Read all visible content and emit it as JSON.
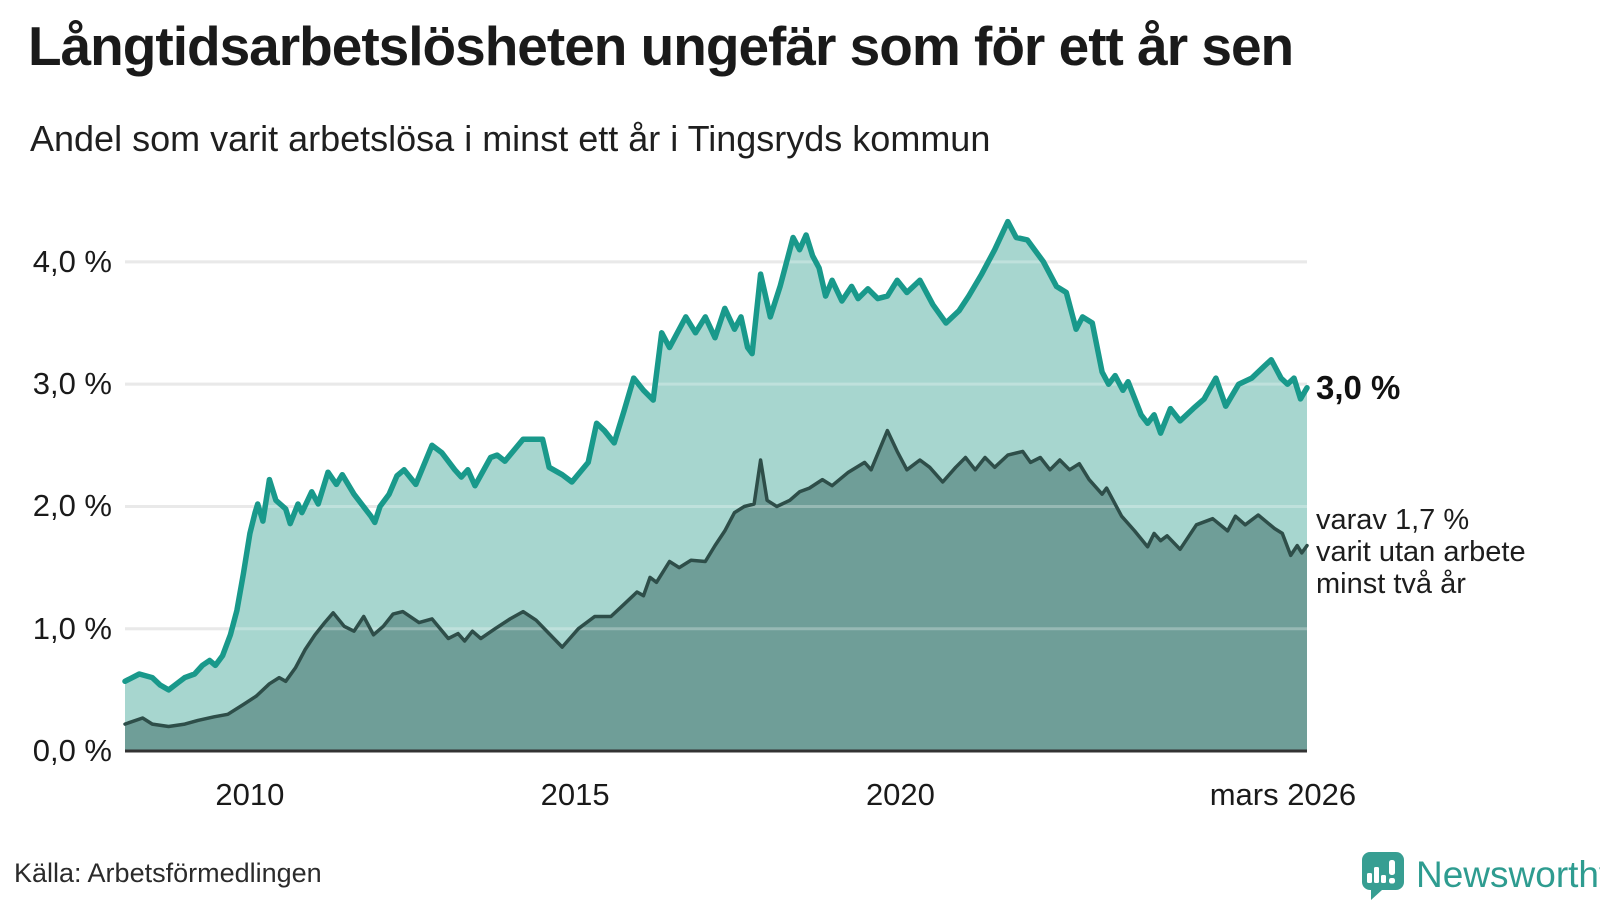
{
  "header": {
    "title": "Långtidsarbetslösheten ungefär som för ett år sen",
    "subtitle": "Andel som varit arbetslösa i minst ett år i Tingsryds kommun"
  },
  "chart_data": {
    "type": "area",
    "x_unit": "decimal_year",
    "xlim": [
      2008.08,
      2026.25
    ],
    "ylim": [
      0,
      4.4
    ],
    "grid": "horizontal",
    "colors": {
      "line_total": "#19998b",
      "fill_total": "#a7d6cf",
      "line_two_years": "#2e4e49",
      "fill_two_years": "#6f9e98",
      "gridline": "#e1e1e1",
      "axis": "#333333"
    },
    "y_ticks": [
      {
        "value": 0,
        "label": "0,0 %"
      },
      {
        "value": 1,
        "label": "1,0 %"
      },
      {
        "value": 2,
        "label": "2,0 %"
      },
      {
        "value": 3,
        "label": "3,0 %"
      },
      {
        "value": 4,
        "label": "4,0 %"
      }
    ],
    "x_ticks": [
      {
        "value": 2010,
        "label": "2010"
      },
      {
        "value": 2015,
        "label": "2015"
      },
      {
        "value": 2020,
        "label": "2020"
      },
      {
        "value": 2025.88,
        "label": "mars 2026"
      }
    ],
    "annotation": {
      "end_label_total": "3,0 %",
      "lines": [
        "varav 1,7 %",
        "varit utan arbete",
        "minst två år"
      ]
    },
    "series": [
      {
        "id": "total_min_one_year",
        "points": [
          [
            2008.08,
            0.57
          ],
          [
            2008.3,
            0.63
          ],
          [
            2008.5,
            0.6
          ],
          [
            2008.62,
            0.54
          ],
          [
            2008.75,
            0.5
          ],
          [
            2008.9,
            0.56
          ],
          [
            2009.0,
            0.6
          ],
          [
            2009.15,
            0.63
          ],
          [
            2009.27,
            0.7
          ],
          [
            2009.38,
            0.74
          ],
          [
            2009.47,
            0.7
          ],
          [
            2009.58,
            0.78
          ],
          [
            2009.7,
            0.95
          ],
          [
            2009.8,
            1.15
          ],
          [
            2009.9,
            1.45
          ],
          [
            2010.0,
            1.78
          ],
          [
            2010.08,
            1.95
          ],
          [
            2010.12,
            2.02
          ],
          [
            2010.2,
            1.88
          ],
          [
            2010.3,
            2.22
          ],
          [
            2010.4,
            2.05
          ],
          [
            2010.55,
            1.98
          ],
          [
            2010.62,
            1.86
          ],
          [
            2010.74,
            2.02
          ],
          [
            2010.8,
            1.95
          ],
          [
            2010.95,
            2.12
          ],
          [
            2011.05,
            2.02
          ],
          [
            2011.2,
            2.28
          ],
          [
            2011.33,
            2.18
          ],
          [
            2011.42,
            2.26
          ],
          [
            2011.6,
            2.1
          ],
          [
            2011.86,
            1.92
          ],
          [
            2011.92,
            1.87
          ],
          [
            2012.0,
            2.0
          ],
          [
            2012.14,
            2.1
          ],
          [
            2012.26,
            2.25
          ],
          [
            2012.37,
            2.3
          ],
          [
            2012.55,
            2.18
          ],
          [
            2012.8,
            2.5
          ],
          [
            2012.95,
            2.44
          ],
          [
            2013.15,
            2.3
          ],
          [
            2013.25,
            2.24
          ],
          [
            2013.35,
            2.3
          ],
          [
            2013.46,
            2.17
          ],
          [
            2013.7,
            2.4
          ],
          [
            2013.8,
            2.42
          ],
          [
            2013.92,
            2.37
          ],
          [
            2014.2,
            2.55
          ],
          [
            2014.5,
            2.55
          ],
          [
            2014.6,
            2.32
          ],
          [
            2014.8,
            2.26
          ],
          [
            2014.95,
            2.2
          ],
          [
            2015.2,
            2.36
          ],
          [
            2015.33,
            2.68
          ],
          [
            2015.45,
            2.62
          ],
          [
            2015.6,
            2.52
          ],
          [
            2015.75,
            2.78
          ],
          [
            2015.9,
            3.05
          ],
          [
            2016.05,
            2.95
          ],
          [
            2016.2,
            2.87
          ],
          [
            2016.33,
            3.42
          ],
          [
            2016.45,
            3.3
          ],
          [
            2016.7,
            3.55
          ],
          [
            2016.85,
            3.42
          ],
          [
            2017.0,
            3.55
          ],
          [
            2017.15,
            3.38
          ],
          [
            2017.3,
            3.62
          ],
          [
            2017.45,
            3.45
          ],
          [
            2017.55,
            3.55
          ],
          [
            2017.65,
            3.3
          ],
          [
            2017.72,
            3.25
          ],
          [
            2017.85,
            3.9
          ],
          [
            2018.0,
            3.55
          ],
          [
            2018.15,
            3.8
          ],
          [
            2018.35,
            4.2
          ],
          [
            2018.45,
            4.1
          ],
          [
            2018.55,
            4.22
          ],
          [
            2018.65,
            4.05
          ],
          [
            2018.75,
            3.95
          ],
          [
            2018.85,
            3.72
          ],
          [
            2018.95,
            3.85
          ],
          [
            2019.1,
            3.68
          ],
          [
            2019.25,
            3.8
          ],
          [
            2019.35,
            3.7
          ],
          [
            2019.5,
            3.78
          ],
          [
            2019.65,
            3.7
          ],
          [
            2019.8,
            3.72
          ],
          [
            2019.95,
            3.85
          ],
          [
            2020.1,
            3.75
          ],
          [
            2020.3,
            3.85
          ],
          [
            2020.5,
            3.65
          ],
          [
            2020.7,
            3.5
          ],
          [
            2020.9,
            3.6
          ],
          [
            2021.05,
            3.72
          ],
          [
            2021.25,
            3.9
          ],
          [
            2021.45,
            4.1
          ],
          [
            2021.65,
            4.33
          ],
          [
            2021.78,
            4.2
          ],
          [
            2021.95,
            4.18
          ],
          [
            2022.2,
            4.0
          ],
          [
            2022.4,
            3.8
          ],
          [
            2022.55,
            3.75
          ],
          [
            2022.7,
            3.45
          ],
          [
            2022.8,
            3.55
          ],
          [
            2022.95,
            3.5
          ],
          [
            2023.1,
            3.1
          ],
          [
            2023.2,
            3.0
          ],
          [
            2023.3,
            3.07
          ],
          [
            2023.42,
            2.95
          ],
          [
            2023.5,
            3.02
          ],
          [
            2023.7,
            2.75
          ],
          [
            2023.8,
            2.68
          ],
          [
            2023.9,
            2.75
          ],
          [
            2024.0,
            2.6
          ],
          [
            2024.15,
            2.8
          ],
          [
            2024.3,
            2.7
          ],
          [
            2024.5,
            2.8
          ],
          [
            2024.67,
            2.88
          ],
          [
            2024.85,
            3.05
          ],
          [
            2025.0,
            2.82
          ],
          [
            2025.2,
            3.0
          ],
          [
            2025.4,
            3.05
          ],
          [
            2025.6,
            3.15
          ],
          [
            2025.7,
            3.2
          ],
          [
            2025.85,
            3.05
          ],
          [
            2025.95,
            3.0
          ],
          [
            2026.05,
            3.05
          ],
          [
            2026.15,
            2.88
          ],
          [
            2026.25,
            2.97
          ]
        ]
      },
      {
        "id": "two_years_or_more",
        "points": [
          [
            2008.08,
            0.22
          ],
          [
            2008.35,
            0.27
          ],
          [
            2008.5,
            0.22
          ],
          [
            2008.75,
            0.2
          ],
          [
            2009.0,
            0.22
          ],
          [
            2009.2,
            0.25
          ],
          [
            2009.45,
            0.28
          ],
          [
            2009.66,
            0.3
          ],
          [
            2009.9,
            0.38
          ],
          [
            2010.1,
            0.45
          ],
          [
            2010.3,
            0.55
          ],
          [
            2010.45,
            0.6
          ],
          [
            2010.55,
            0.57
          ],
          [
            2010.7,
            0.68
          ],
          [
            2010.85,
            0.83
          ],
          [
            2011.0,
            0.95
          ],
          [
            2011.15,
            1.05
          ],
          [
            2011.28,
            1.13
          ],
          [
            2011.45,
            1.02
          ],
          [
            2011.6,
            0.98
          ],
          [
            2011.75,
            1.1
          ],
          [
            2011.9,
            0.95
          ],
          [
            2012.05,
            1.02
          ],
          [
            2012.2,
            1.12
          ],
          [
            2012.35,
            1.14
          ],
          [
            2012.6,
            1.05
          ],
          [
            2012.8,
            1.08
          ],
          [
            2013.05,
            0.92
          ],
          [
            2013.2,
            0.96
          ],
          [
            2013.3,
            0.9
          ],
          [
            2013.42,
            0.98
          ],
          [
            2013.55,
            0.92
          ],
          [
            2013.77,
            1.0
          ],
          [
            2014.0,
            1.08
          ],
          [
            2014.2,
            1.14
          ],
          [
            2014.4,
            1.07
          ],
          [
            2014.6,
            0.96
          ],
          [
            2014.8,
            0.85
          ],
          [
            2015.05,
            1.0
          ],
          [
            2015.3,
            1.1
          ],
          [
            2015.55,
            1.1
          ],
          [
            2015.75,
            1.2
          ],
          [
            2015.95,
            1.3
          ],
          [
            2016.05,
            1.27
          ],
          [
            2016.15,
            1.42
          ],
          [
            2016.25,
            1.38
          ],
          [
            2016.45,
            1.55
          ],
          [
            2016.6,
            1.5
          ],
          [
            2016.78,
            1.56
          ],
          [
            2017.0,
            1.55
          ],
          [
            2017.15,
            1.68
          ],
          [
            2017.3,
            1.8
          ],
          [
            2017.45,
            1.95
          ],
          [
            2017.6,
            2.0
          ],
          [
            2017.75,
            2.02
          ],
          [
            2017.85,
            2.38
          ],
          [
            2017.95,
            2.05
          ],
          [
            2018.1,
            2.0
          ],
          [
            2018.3,
            2.05
          ],
          [
            2018.45,
            2.12
          ],
          [
            2018.6,
            2.15
          ],
          [
            2018.8,
            2.22
          ],
          [
            2018.95,
            2.17
          ],
          [
            2019.2,
            2.28
          ],
          [
            2019.45,
            2.36
          ],
          [
            2019.55,
            2.3
          ],
          [
            2019.8,
            2.62
          ],
          [
            2019.95,
            2.45
          ],
          [
            2020.1,
            2.3
          ],
          [
            2020.3,
            2.38
          ],
          [
            2020.45,
            2.32
          ],
          [
            2020.65,
            2.2
          ],
          [
            2020.85,
            2.32
          ],
          [
            2021.0,
            2.4
          ],
          [
            2021.15,
            2.3
          ],
          [
            2021.3,
            2.4
          ],
          [
            2021.45,
            2.32
          ],
          [
            2021.65,
            2.42
          ],
          [
            2021.88,
            2.45
          ],
          [
            2022.0,
            2.36
          ],
          [
            2022.15,
            2.4
          ],
          [
            2022.3,
            2.3
          ],
          [
            2022.45,
            2.38
          ],
          [
            2022.6,
            2.3
          ],
          [
            2022.75,
            2.35
          ],
          [
            2022.9,
            2.22
          ],
          [
            2023.1,
            2.1
          ],
          [
            2023.17,
            2.15
          ],
          [
            2023.4,
            1.92
          ],
          [
            2023.6,
            1.8
          ],
          [
            2023.8,
            1.67
          ],
          [
            2023.9,
            1.78
          ],
          [
            2024.0,
            1.72
          ],
          [
            2024.1,
            1.76
          ],
          [
            2024.3,
            1.65
          ],
          [
            2024.55,
            1.85
          ],
          [
            2024.8,
            1.9
          ],
          [
            2025.03,
            1.8
          ],
          [
            2025.15,
            1.92
          ],
          [
            2025.3,
            1.85
          ],
          [
            2025.5,
            1.93
          ],
          [
            2025.75,
            1.82
          ],
          [
            2025.87,
            1.78
          ],
          [
            2026.0,
            1.6
          ],
          [
            2026.1,
            1.68
          ],
          [
            2026.17,
            1.62
          ],
          [
            2026.25,
            1.68
          ]
        ]
      }
    ]
  },
  "footer": {
    "source": "Källa: Arbetsförmedlingen",
    "brand": "Newsworthy"
  }
}
